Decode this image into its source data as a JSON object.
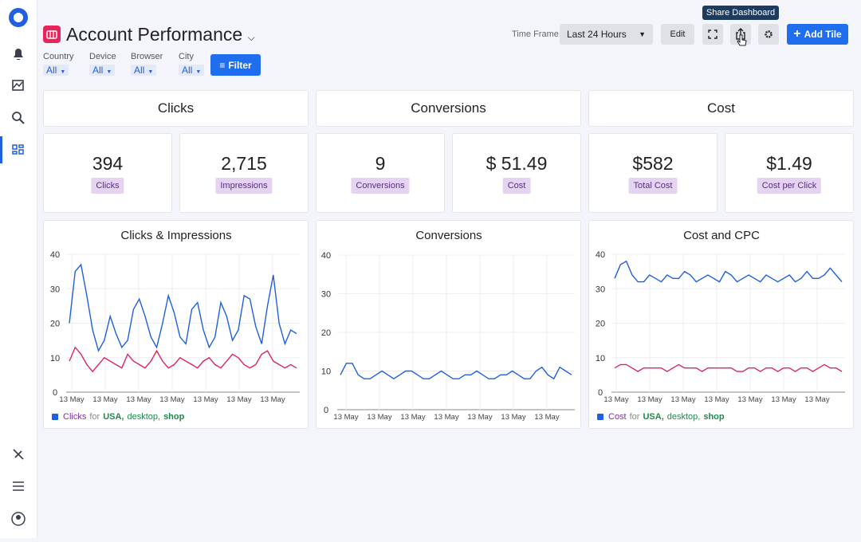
{
  "header": {
    "title": "Account Performance",
    "filters": [
      {
        "label": "Country",
        "value": "All"
      },
      {
        "label": "Device",
        "value": "All"
      },
      {
        "label": "Browser",
        "value": "All"
      },
      {
        "label": "City",
        "value": "All"
      }
    ],
    "filter_button": "Filter",
    "time_frame_label": "Time Frame",
    "time_frame": "Last 24 Hours",
    "edit": "Edit",
    "add_tile": "Add Tile",
    "tooltip": "Share Dashboard"
  },
  "sections": [
    "Clicks",
    "Conversions",
    "Cost"
  ],
  "kpis": [
    {
      "value": "394",
      "label": "Clicks"
    },
    {
      "value": "2,715",
      "label": "Impressions"
    },
    {
      "value": "9",
      "label": "Conversions"
    },
    {
      "value": "$ 51.49",
      "label": "Cost"
    },
    {
      "value": "$582",
      "label": "Total Cost"
    },
    {
      "value": "$1.49",
      "label": "Cost per Click"
    }
  ],
  "charts": [
    {
      "type": "line",
      "title": "Clicks & Impressions",
      "ylim": [
        0,
        40
      ],
      "yticks": [
        0,
        10,
        20,
        30,
        40
      ],
      "x_labels": [
        "13 May",
        "13 May",
        "13 May",
        "13 May",
        "13 May",
        "13 May",
        "13 May"
      ],
      "series": [
        {
          "color": "#1f5fe0",
          "values": [
            20,
            35,
            37,
            28,
            18,
            12,
            15,
            22,
            17,
            13,
            15,
            24,
            27,
            22,
            16,
            13,
            20,
            28,
            23,
            16,
            14,
            24,
            26,
            18,
            13,
            16,
            26,
            22,
            15,
            18,
            28,
            27,
            19,
            14,
            25,
            34,
            20,
            14,
            18,
            17
          ]
        },
        {
          "color": "#e0245e",
          "values": [
            9,
            13,
            11,
            8,
            6,
            8,
            10,
            9,
            8,
            7,
            11,
            9,
            8,
            7,
            9,
            12,
            9,
            7,
            8,
            10,
            9,
            8,
            7,
            9,
            10,
            8,
            7,
            9,
            11,
            10,
            8,
            7,
            8,
            11,
            12,
            9,
            8,
            7,
            8,
            7
          ]
        }
      ],
      "legend": {
        "name": "Clicks",
        "for": "for",
        "filters": [
          "USA,",
          "desktop,",
          "shop"
        ]
      }
    },
    {
      "type": "line",
      "title": "Conversions",
      "ylim": [
        0,
        40
      ],
      "yticks": [
        0,
        10,
        20,
        30,
        40
      ],
      "x_labels": [
        "13 May",
        "13 May",
        "13 May",
        "13 May",
        "13 May",
        "13 May",
        "13 May"
      ],
      "series": [
        {
          "color": "#1f5fe0",
          "values": [
            9,
            12,
            12,
            9,
            8,
            8,
            9,
            10,
            9,
            8,
            9,
            10,
            10,
            9,
            8,
            8,
            9,
            10,
            9,
            8,
            8,
            9,
            9,
            10,
            9,
            8,
            8,
            9,
            9,
            10,
            9,
            8,
            8,
            10,
            11,
            9,
            8,
            11,
            10,
            9
          ]
        }
      ]
    },
    {
      "type": "line",
      "title": "Cost and CPC",
      "ylim": [
        0,
        40
      ],
      "yticks": [
        0,
        10,
        20,
        30,
        40
      ],
      "x_labels": [
        "13 May",
        "13 May",
        "13 May",
        "13 May",
        "13 May",
        "13 May",
        "13 May"
      ],
      "series": [
        {
          "color": "#1f5fe0",
          "values": [
            33,
            37,
            38,
            34,
            32,
            32,
            34,
            33,
            32,
            34,
            33,
            33,
            35,
            34,
            32,
            33,
            34,
            33,
            32,
            35,
            34,
            32,
            33,
            34,
            33,
            32,
            34,
            33,
            32,
            33,
            34,
            32,
            33,
            35,
            33,
            33,
            34,
            36,
            34,
            32
          ]
        },
        {
          "color": "#e0245e",
          "values": [
            7,
            8,
            8,
            7,
            6,
            7,
            7,
            7,
            7,
            6,
            7,
            8,
            7,
            7,
            7,
            6,
            7,
            7,
            7,
            7,
            7,
            6,
            6,
            7,
            7,
            6,
            7,
            7,
            6,
            7,
            7,
            6,
            7,
            7,
            6,
            7,
            8,
            7,
            7,
            6
          ]
        }
      ],
      "legend": {
        "name": "Cost",
        "for": "for",
        "filters": [
          "USA,",
          "desktop,",
          "shop"
        ]
      }
    }
  ]
}
